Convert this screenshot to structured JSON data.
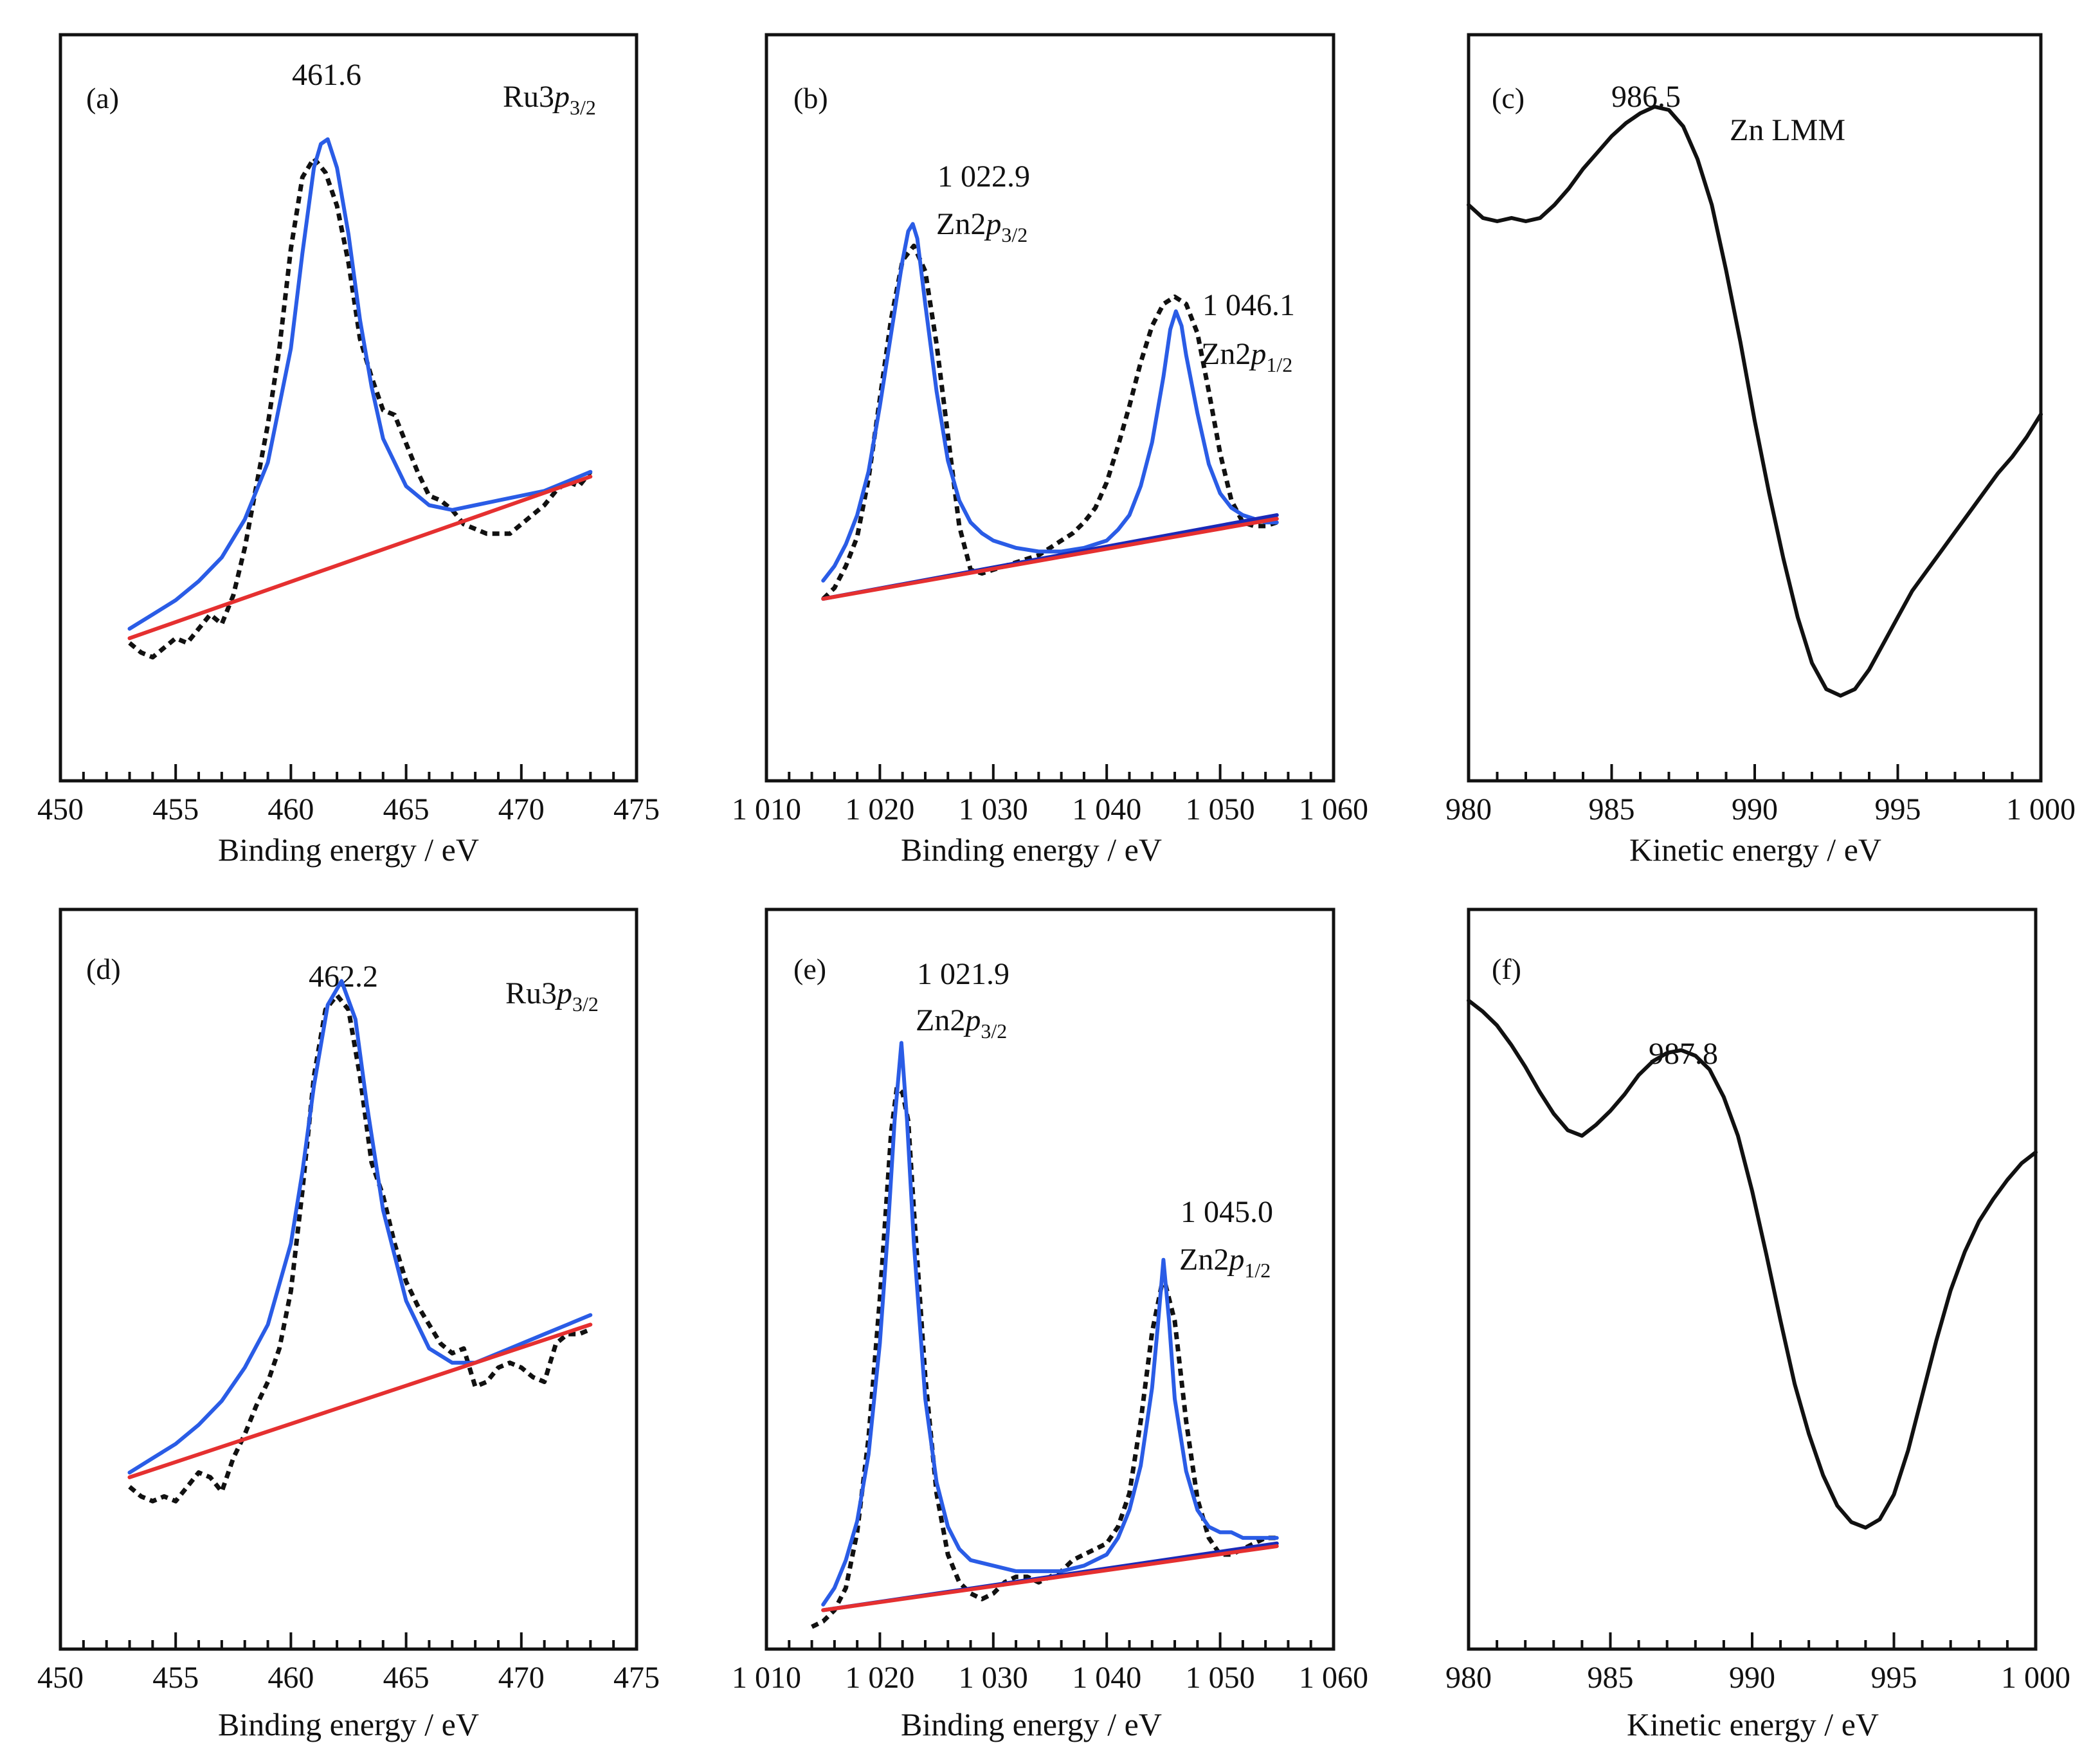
{
  "chart_data": [
    {
      "panel": "(a)",
      "type": "line",
      "xlabel": "Binding energy / eV",
      "xlim": [
        450,
        475
      ],
      "xticks": [
        450,
        455,
        460,
        465,
        470,
        475
      ],
      "xtick_labels": [
        "450",
        "455",
        "460",
        "465",
        "470",
        "475"
      ],
      "annotations": [
        {
          "text": "461.6",
          "x": 461.6
        }
      ],
      "label_main": "Ru3",
      "label_italic": "p",
      "label_sub": "3/2",
      "series": [
        {
          "style": "dotted",
          "color": "#111111",
          "x": [
            453,
            453.5,
            454,
            454.5,
            455,
            455.5,
            456,
            456.5,
            457,
            457.5,
            458,
            458.5,
            459,
            459.5,
            460,
            460.5,
            461,
            461.5,
            462,
            462.5,
            463,
            463.5,
            464,
            464.5,
            465,
            465.5,
            466,
            466.5,
            467,
            467.5,
            468,
            468.5,
            469,
            469.5,
            470,
            470.5,
            471,
            471.5,
            472,
            472.5,
            473
          ],
          "y": [
            0.04,
            0.02,
            0.01,
            0.03,
            0.05,
            0.04,
            0.07,
            0.1,
            0.08,
            0.14,
            0.24,
            0.37,
            0.5,
            0.66,
            0.87,
            1.02,
            1.06,
            1.03,
            0.96,
            0.84,
            0.68,
            0.6,
            0.53,
            0.52,
            0.46,
            0.4,
            0.35,
            0.34,
            0.32,
            0.29,
            0.28,
            0.27,
            0.27,
            0.27,
            0.29,
            0.31,
            0.33,
            0.36,
            0.38,
            0.37,
            0.4
          ]
        },
        {
          "style": "solid",
          "color": "#2a5ce6",
          "x": [
            453,
            454,
            455,
            456,
            457,
            458,
            459,
            460,
            460.5,
            461,
            461.3,
            461.6,
            462,
            462.5,
            463,
            463.5,
            464,
            465,
            466,
            467,
            468,
            469,
            470,
            471,
            472,
            473
          ],
          "y": [
            0.07,
            0.1,
            0.13,
            0.17,
            0.22,
            0.3,
            0.42,
            0.66,
            0.86,
            1.04,
            1.09,
            1.1,
            1.04,
            0.9,
            0.72,
            0.58,
            0.47,
            0.37,
            0.33,
            0.32,
            0.33,
            0.34,
            0.35,
            0.36,
            0.38,
            0.4
          ]
        },
        {
          "style": "solid",
          "color": "#e53030",
          "x": [
            453,
            473
          ],
          "y": [
            0.05,
            0.39
          ]
        }
      ]
    },
    {
      "panel": "(b)",
      "type": "line",
      "xlabel": "Binding energy / eV",
      "xlim": [
        1010,
        1060
      ],
      "xticks": [
        1010,
        1020,
        1030,
        1040,
        1050,
        1060
      ],
      "xtick_labels": [
        "1 010",
        "1 020",
        "1 030",
        "1 040",
        "1 050",
        "1 060"
      ],
      "annotations": [
        {
          "value": "1 022.9",
          "main": "Zn2",
          "italic": "p",
          "sub": "3/2",
          "x": 1022.9
        },
        {
          "value": "1 046.1",
          "main": "Zn2",
          "italic": "p",
          "sub": "1/2",
          "x": 1046.1
        }
      ],
      "series": [
        {
          "style": "dotted",
          "color": "#111111",
          "x": [
            1015,
            1016,
            1017,
            1018,
            1019,
            1020,
            1021,
            1022,
            1023,
            1024,
            1025,
            1026,
            1027,
            1028,
            1029,
            1030,
            1031,
            1032,
            1033,
            1034,
            1035,
            1036,
            1037,
            1038,
            1039,
            1040,
            1041,
            1042,
            1043,
            1044,
            1045,
            1046,
            1047,
            1048,
            1049,
            1050,
            1051,
            1052,
            1053,
            1054,
            1055
          ],
          "y": [
            0.05,
            0.08,
            0.14,
            0.22,
            0.38,
            0.6,
            0.82,
            0.98,
            1.02,
            0.95,
            0.75,
            0.5,
            0.25,
            0.13,
            0.12,
            0.13,
            0.14,
            0.15,
            0.16,
            0.17,
            0.19,
            0.21,
            0.23,
            0.26,
            0.3,
            0.37,
            0.47,
            0.58,
            0.7,
            0.8,
            0.86,
            0.88,
            0.86,
            0.78,
            0.62,
            0.45,
            0.32,
            0.26,
            0.25,
            0.25,
            0.26
          ]
        },
        {
          "style": "solid",
          "color": "#2a5ce6",
          "x": [
            1015,
            1016,
            1017,
            1018,
            1019,
            1020,
            1021,
            1022,
            1022.5,
            1022.9,
            1023.3,
            1024,
            1025,
            1026,
            1027,
            1028,
            1029,
            1030,
            1032,
            1034,
            1036,
            1038,
            1040,
            1041,
            1042,
            1043,
            1044,
            1045,
            1045.6,
            1046.1,
            1046.6,
            1047,
            1048,
            1049,
            1050,
            1051,
            1052,
            1053,
            1054,
            1055
          ],
          "y": [
            0.1,
            0.14,
            0.2,
            0.28,
            0.4,
            0.58,
            0.78,
            0.98,
            1.06,
            1.08,
            1.04,
            0.86,
            0.62,
            0.43,
            0.32,
            0.26,
            0.23,
            0.21,
            0.19,
            0.18,
            0.18,
            0.19,
            0.21,
            0.24,
            0.28,
            0.36,
            0.48,
            0.66,
            0.79,
            0.84,
            0.8,
            0.72,
            0.56,
            0.42,
            0.34,
            0.3,
            0.28,
            0.27,
            0.26,
            0.26
          ]
        },
        {
          "style": "solid",
          "color": "#1a2ab8",
          "x": [
            1015,
            1055
          ],
          "y": [
            0.05,
            0.28
          ]
        },
        {
          "style": "solid",
          "color": "#e53030",
          "x": [
            1015,
            1055
          ],
          "y": [
            0.05,
            0.27
          ]
        }
      ]
    },
    {
      "panel": "(c)",
      "type": "line",
      "xlabel": "Kinetic energy / eV",
      "xlim": [
        980,
        1000
      ],
      "xticks": [
        980,
        985,
        990,
        995,
        1000
      ],
      "xtick_labels": [
        "980",
        "985",
        "990",
        "995",
        "1 000"
      ],
      "annotations": [
        {
          "text": "986.5",
          "x": 986.5
        }
      ],
      "label_main": "Zn LMM",
      "series": [
        {
          "style": "solid",
          "color": "#111111",
          "x": [
            980,
            980.5,
            981,
            981.5,
            982,
            982.5,
            983,
            983.5,
            984,
            984.5,
            985,
            985.5,
            986,
            986.5,
            987,
            987.5,
            988,
            988.5,
            989,
            989.5,
            990,
            990.5,
            991,
            991.5,
            992,
            992.5,
            993,
            993.5,
            994,
            994.5,
            995,
            995.5,
            996,
            996.5,
            997,
            997.5,
            998,
            998.5,
            999,
            999.5,
            1000
          ],
          "y": [
            0.84,
            0.8,
            0.79,
            0.8,
            0.79,
            0.8,
            0.84,
            0.89,
            0.95,
            1.0,
            1.05,
            1.09,
            1.12,
            1.14,
            1.13,
            1.08,
            0.98,
            0.84,
            0.64,
            0.42,
            0.18,
            -0.04,
            -0.24,
            -0.42,
            -0.56,
            -0.64,
            -0.66,
            -0.64,
            -0.58,
            -0.5,
            -0.42,
            -0.34,
            -0.28,
            -0.22,
            -0.16,
            -0.1,
            -0.04,
            0.02,
            0.07,
            0.13,
            0.2
          ]
        }
      ]
    },
    {
      "panel": "(d)",
      "type": "line",
      "xlabel": "Binding energy / eV",
      "xlim": [
        450,
        475
      ],
      "xticks": [
        450,
        455,
        460,
        465,
        470,
        475
      ],
      "xtick_labels": [
        "450",
        "455",
        "460",
        "465",
        "470",
        "475"
      ],
      "annotations": [
        {
          "text": "462.2",
          "x": 462.2
        }
      ],
      "label_main": "Ru3",
      "label_italic": "p",
      "label_sub": "3/2",
      "series": [
        {
          "style": "dotted",
          "color": "#111111",
          "x": [
            453,
            453.5,
            454,
            454.5,
            455,
            455.5,
            456,
            456.5,
            457,
            457.5,
            458,
            458.5,
            459,
            459.5,
            460,
            460.5,
            461,
            461.5,
            462,
            462.5,
            463,
            463.5,
            464,
            464.5,
            465,
            465.5,
            466,
            466.5,
            467,
            467.5,
            468,
            468.5,
            469,
            469.5,
            470,
            470.5,
            471,
            471.5,
            472,
            472.5,
            473
          ],
          "y": [
            0.04,
            0.02,
            0.01,
            0.02,
            0.01,
            0.04,
            0.07,
            0.06,
            0.03,
            0.1,
            0.15,
            0.21,
            0.26,
            0.33,
            0.45,
            0.66,
            0.9,
            1.04,
            1.07,
            1.04,
            0.9,
            0.72,
            0.65,
            0.55,
            0.47,
            0.42,
            0.38,
            0.34,
            0.32,
            0.33,
            0.25,
            0.26,
            0.29,
            0.3,
            0.29,
            0.27,
            0.26,
            0.34,
            0.36,
            0.36,
            0.37
          ]
        },
        {
          "style": "solid",
          "color": "#2a5ce6",
          "x": [
            453,
            454,
            455,
            456,
            457,
            458,
            459,
            460,
            460.5,
            461,
            461.6,
            462.2,
            462.8,
            463.3,
            464,
            465,
            466,
            467,
            468,
            469,
            470,
            471,
            472,
            473
          ],
          "y": [
            0.07,
            0.1,
            0.13,
            0.17,
            0.22,
            0.29,
            0.38,
            0.55,
            0.7,
            0.88,
            1.05,
            1.1,
            1.02,
            0.84,
            0.62,
            0.43,
            0.33,
            0.3,
            0.3,
            0.32,
            0.34,
            0.36,
            0.38,
            0.4
          ]
        },
        {
          "style": "solid",
          "color": "#e53030",
          "x": [
            453,
            473
          ],
          "y": [
            0.06,
            0.38
          ]
        }
      ]
    },
    {
      "panel": "(e)",
      "type": "line",
      "xlabel": "Binding energy / eV",
      "xlim": [
        1010,
        1060
      ],
      "xticks": [
        1010,
        1020,
        1030,
        1040,
        1050,
        1060
      ],
      "xtick_labels": [
        "1 010",
        "1 020",
        "1 030",
        "1 040",
        "1 050",
        "1 060"
      ],
      "annotations": [
        {
          "value": "1 021.9",
          "main": "Zn2",
          "italic": "p",
          "sub": "3/2",
          "x": 1021.9
        },
        {
          "value": "1 045.0",
          "main": "Zn2",
          "italic": "p",
          "sub": "1/2",
          "x": 1045.0
        }
      ],
      "series": [
        {
          "style": "dotted",
          "color": "#111111",
          "x": [
            1014,
            1015,
            1016,
            1017,
            1018,
            1019,
            1020,
            1021,
            1021.5,
            1022,
            1022.5,
            1023,
            1024,
            1025,
            1026,
            1027,
            1028,
            1029,
            1030,
            1031,
            1032,
            1033,
            1034,
            1035,
            1036,
            1037,
            1038,
            1039,
            1040,
            1041,
            1042,
            1043,
            1044,
            1045,
            1046,
            1047,
            1048,
            1049,
            1050,
            1051,
            1052,
            1053,
            1054,
            1055
          ],
          "y": [
            0.01,
            0.02,
            0.04,
            0.08,
            0.18,
            0.35,
            0.6,
            0.9,
            0.98,
            0.97,
            0.92,
            0.76,
            0.46,
            0.25,
            0.14,
            0.09,
            0.07,
            0.06,
            0.07,
            0.09,
            0.1,
            0.1,
            0.09,
            0.1,
            0.11,
            0.13,
            0.14,
            0.15,
            0.16,
            0.19,
            0.25,
            0.38,
            0.54,
            0.64,
            0.56,
            0.38,
            0.24,
            0.17,
            0.14,
            0.14,
            0.15,
            0.16,
            0.17,
            0.17
          ]
        },
        {
          "style": "solid",
          "color": "#2a5ce6",
          "x": [
            1015,
            1016,
            1017,
            1018,
            1019,
            1020,
            1020.7,
            1021.3,
            1021.9,
            1022.4,
            1023,
            1024,
            1025,
            1026,
            1027,
            1028,
            1030,
            1032,
            1034,
            1036,
            1038,
            1040,
            1041,
            1042,
            1043,
            1044,
            1044.5,
            1045,
            1045.5,
            1046,
            1047,
            1048,
            1049,
            1050,
            1051,
            1052,
            1053,
            1054,
            1055
          ],
          "y": [
            0.05,
            0.08,
            0.13,
            0.2,
            0.32,
            0.52,
            0.72,
            0.92,
            1.06,
            0.92,
            0.7,
            0.42,
            0.27,
            0.19,
            0.15,
            0.13,
            0.12,
            0.11,
            0.11,
            0.11,
            0.12,
            0.14,
            0.17,
            0.22,
            0.3,
            0.44,
            0.55,
            0.67,
            0.56,
            0.42,
            0.29,
            0.22,
            0.19,
            0.18,
            0.18,
            0.17,
            0.17,
            0.17,
            0.17
          ]
        },
        {
          "style": "solid",
          "color": "#1a2ab8",
          "x": [
            1015,
            1055
          ],
          "y": [
            0.04,
            0.16
          ]
        },
        {
          "style": "solid",
          "color": "#e53030",
          "x": [
            1015,
            1055
          ],
          "y": [
            0.04,
            0.155
          ]
        }
      ]
    },
    {
      "panel": "(f)",
      "type": "line",
      "xlabel": "Kinetic energy / eV",
      "xlim": [
        980,
        1000
      ],
      "xticks": [
        980,
        985,
        990,
        995,
        1000
      ],
      "xtick_labels": [
        "980",
        "985",
        "990",
        "995",
        "1 000"
      ],
      "annotations": [
        {
          "text": "987.8",
          "x": 987.8
        }
      ],
      "series": [
        {
          "style": "solid",
          "color": "#111111",
          "x": [
            980,
            980.5,
            981,
            981.5,
            982,
            982.5,
            983,
            983.5,
            984,
            984.5,
            985,
            985.5,
            986,
            986.5,
            987,
            987.5,
            988,
            988.5,
            989,
            989.5,
            990,
            990.5,
            991,
            991.5,
            992,
            992.5,
            993,
            993.5,
            994,
            994.5,
            995,
            995.5,
            996,
            996.5,
            997,
            997.5,
            998,
            998.5,
            999,
            999.5,
            1000
          ],
          "y": [
            0.97,
            0.93,
            0.88,
            0.81,
            0.73,
            0.64,
            0.56,
            0.5,
            0.48,
            0.52,
            0.57,
            0.63,
            0.7,
            0.75,
            0.78,
            0.79,
            0.77,
            0.72,
            0.62,
            0.48,
            0.28,
            0.05,
            -0.19,
            -0.42,
            -0.6,
            -0.75,
            -0.86,
            -0.92,
            -0.94,
            -0.91,
            -0.82,
            -0.66,
            -0.46,
            -0.26,
            -0.08,
            0.06,
            0.17,
            0.25,
            0.32,
            0.38,
            0.42
          ]
        }
      ]
    }
  ]
}
